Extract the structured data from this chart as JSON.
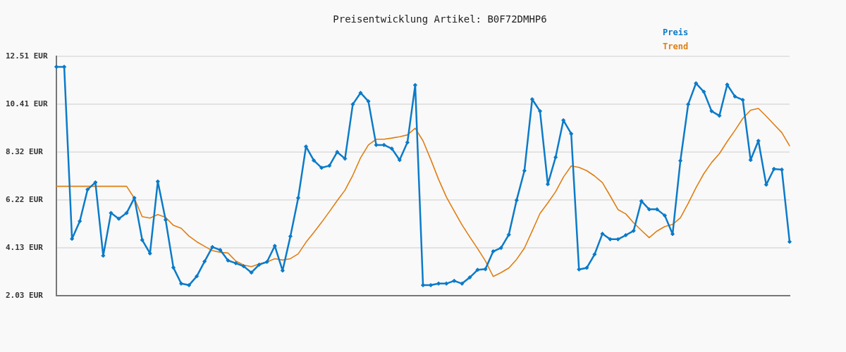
{
  "chart_data": {
    "type": "line",
    "title": "Preisentwicklung Artikel: B0F72DMHP6",
    "categories": [
      null,
      null,
      null,
      null,
      null,
      null,
      null,
      null,
      null,
      null,
      null,
      null,
      null,
      null,
      null,
      null,
      null,
      null,
      null,
      null,
      null,
      null,
      null,
      null,
      null,
      null,
      null,
      null,
      null,
      null,
      null,
      null,
      null,
      null,
      null,
      null,
      null,
      null,
      null,
      null,
      null,
      null,
      null,
      null,
      null,
      null,
      null,
      null,
      null,
      null,
      null,
      null,
      null,
      null,
      null,
      null,
      null,
      null,
      null,
      null,
      null,
      null,
      null,
      null,
      null,
      null,
      null,
      null,
      null,
      null,
      null,
      null,
      null,
      null,
      null,
      null,
      null,
      null,
      null,
      null,
      null,
      null,
      null,
      null,
      null,
      null,
      null,
      null,
      null,
      null,
      null,
      null,
      null,
      null,
      null
    ],
    "series": [
      {
        "name": "Preis",
        "color": "#0b7bc9",
        "values": [
          12.05,
          12.05,
          4.52,
          5.29,
          6.68,
          6.99,
          3.78,
          5.65,
          5.4,
          5.65,
          6.31,
          4.47,
          3.88,
          7.03,
          5.35,
          3.26,
          2.56,
          2.49,
          2.88,
          3.53,
          4.16,
          4.03,
          3.57,
          3.45,
          3.32,
          3.04,
          3.39,
          3.51,
          4.21,
          3.13,
          4.63,
          6.31,
          8.56,
          7.95,
          7.63,
          7.72,
          8.32,
          8.03,
          10.41,
          10.91,
          10.54,
          8.63,
          8.63,
          8.47,
          7.97,
          8.74,
          11.25,
          2.49,
          2.49,
          2.56,
          2.56,
          2.68,
          2.56,
          2.83,
          3.16,
          3.19,
          3.97,
          4.12,
          4.7,
          6.21,
          7.5,
          10.63,
          10.11,
          6.91,
          8.09,
          9.71,
          9.12,
          3.18,
          3.25,
          3.84,
          4.74,
          4.5,
          4.5,
          4.68,
          4.87,
          6.17,
          5.81,
          5.81,
          5.54,
          4.73,
          7.94,
          10.41,
          11.33,
          10.96,
          10.11,
          9.91,
          11.27,
          10.75,
          10.6,
          7.97,
          8.81,
          6.89,
          7.58,
          7.55,
          4.39
        ]
      },
      {
        "name": "Trend",
        "color": "#e07e12",
        "marker": "none",
        "values": [
          6.82,
          6.82,
          6.82,
          6.82,
          6.82,
          6.82,
          6.82,
          6.82,
          6.82,
          6.82,
          6.29,
          5.49,
          5.43,
          5.58,
          5.46,
          5.11,
          4.98,
          4.64,
          4.39,
          4.19,
          4.0,
          3.93,
          3.9,
          3.55,
          3.37,
          3.3,
          3.42,
          3.51,
          3.65,
          3.59,
          3.65,
          3.86,
          4.37,
          4.8,
          5.24,
          5.71,
          6.19,
          6.65,
          7.3,
          8.07,
          8.63,
          8.88,
          8.88,
          8.93,
          8.99,
          9.07,
          9.36,
          8.81,
          7.99,
          7.12,
          6.35,
          5.73,
          5.13,
          4.6,
          4.09,
          3.55,
          2.87,
          3.04,
          3.24,
          3.62,
          4.11,
          4.86,
          5.63,
          6.09,
          6.58,
          7.22,
          7.71,
          7.65,
          7.5,
          7.27,
          6.98,
          6.4,
          5.8,
          5.61,
          5.22,
          4.89,
          4.57,
          4.86,
          5.06,
          5.15,
          5.44,
          6.07,
          6.76,
          7.37,
          7.86,
          8.25,
          8.78,
          9.27,
          9.79,
          10.15,
          10.23,
          9.89,
          9.53,
          9.17,
          8.59
        ]
      }
    ],
    "ylim": [
      2.03,
      12.51
    ],
    "yticks": [
      {
        "value": 2.03,
        "label": "2.03 EUR"
      },
      {
        "value": 4.13,
        "label": "4.13 EUR"
      },
      {
        "value": 6.22,
        "label": "6.22 EUR"
      },
      {
        "value": 8.32,
        "label": "8.32 EUR"
      },
      {
        "value": 10.41,
        "label": "10.41 EUR"
      },
      {
        "value": 12.51,
        "label": "12.51 EUR"
      }
    ],
    "grid": "y",
    "legend": "top right",
    "marker": "diamond"
  }
}
